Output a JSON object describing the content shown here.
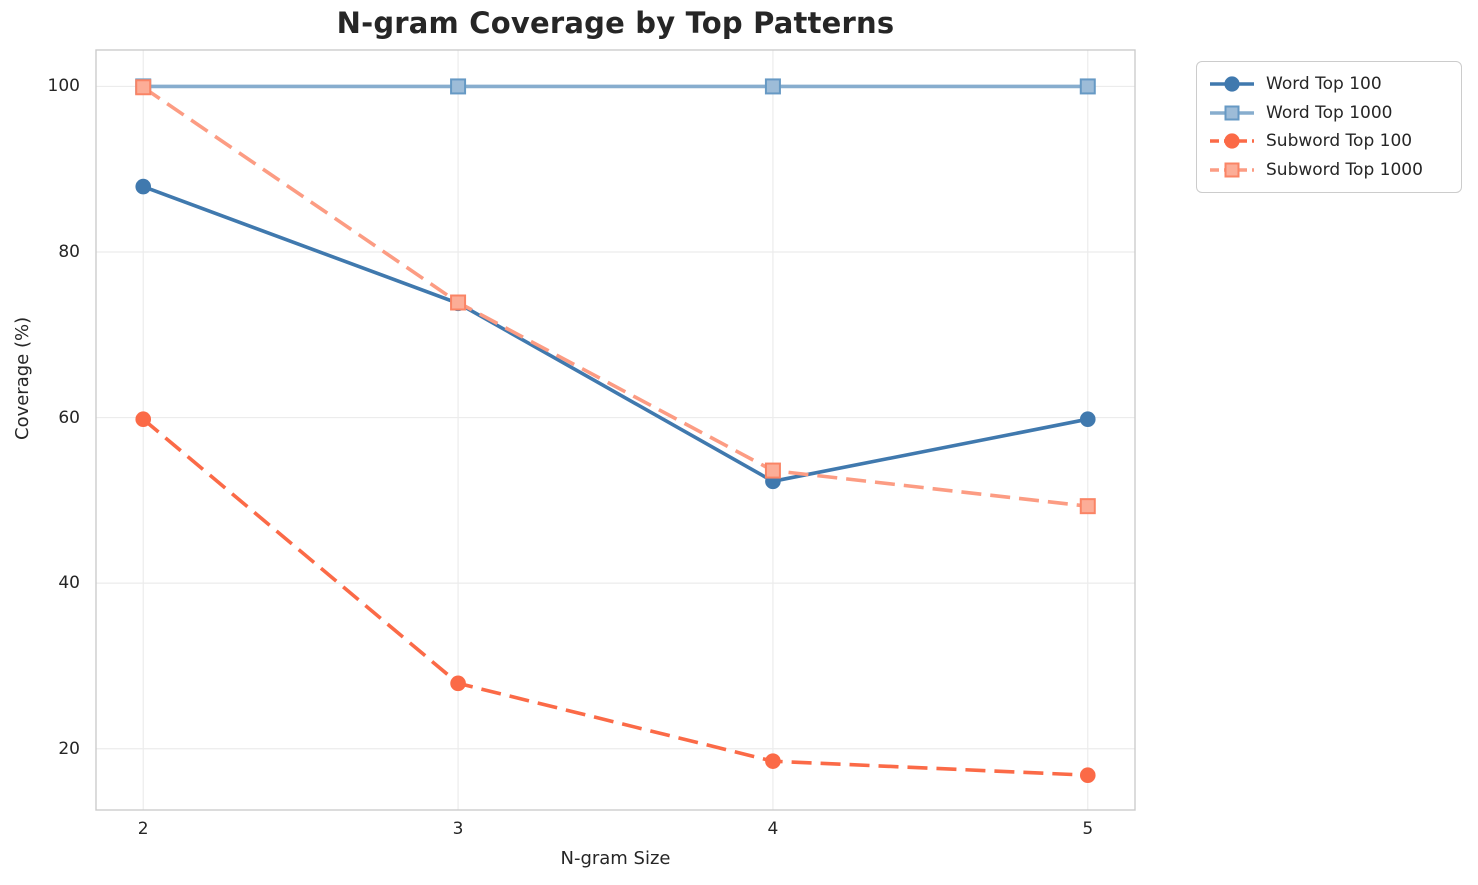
{
  "chart_data": {
    "type": "line",
    "title": "N-gram Coverage by Top Patterns",
    "xlabel": "N-gram Size",
    "ylabel": "Coverage (%)",
    "x": [
      2,
      3,
      4,
      5
    ],
    "xticks": [
      "2",
      "3",
      "4",
      "5"
    ],
    "xtick_values": [
      2,
      3,
      4,
      5
    ],
    "yticks": [
      "20",
      "40",
      "60",
      "80",
      "100"
    ],
    "ytick_values": [
      20,
      40,
      60,
      80,
      100
    ],
    "xlim": [
      1.85,
      5.15
    ],
    "ylim": [
      12.6,
      104.4
    ],
    "grid": true,
    "legend_position": "outside-upper-right",
    "series": [
      {
        "name": "Word Top 100",
        "values": [
          87.9,
          73.8,
          52.3,
          59.8
        ],
        "color": "#4079AE",
        "line_style": "solid",
        "marker": "circle",
        "marker_fill": "#4079AE",
        "marker_stroke": "#4079AE"
      },
      {
        "name": "Word Top 1000",
        "values": [
          100,
          100,
          100,
          100
        ],
        "color": "#87ADCE",
        "line_style": "solid",
        "marker": "square",
        "marker_fill": "#9DBCD8",
        "marker_stroke": "#6699C4"
      },
      {
        "name": "Subword Top 100",
        "values": [
          59.8,
          27.9,
          18.5,
          16.8
        ],
        "color": "#FB6A47",
        "line_style": "dashed",
        "marker": "circle",
        "marker_fill": "#FB6A47",
        "marker_stroke": "#FB6A47"
      },
      {
        "name": "Subword Top 1000",
        "values": [
          99.9,
          73.9,
          53.6,
          49.3
        ],
        "color": "#FC9C83",
        "line_style": "dashed",
        "marker": "square",
        "marker_fill": "#FCAD97",
        "marker_stroke": "#FA8465"
      }
    ],
    "colors": {
      "grid": "#ececec",
      "spine": "#cccccc",
      "text": "#262626",
      "background": "#ffffff",
      "legend_border": "#cccccc"
    }
  }
}
